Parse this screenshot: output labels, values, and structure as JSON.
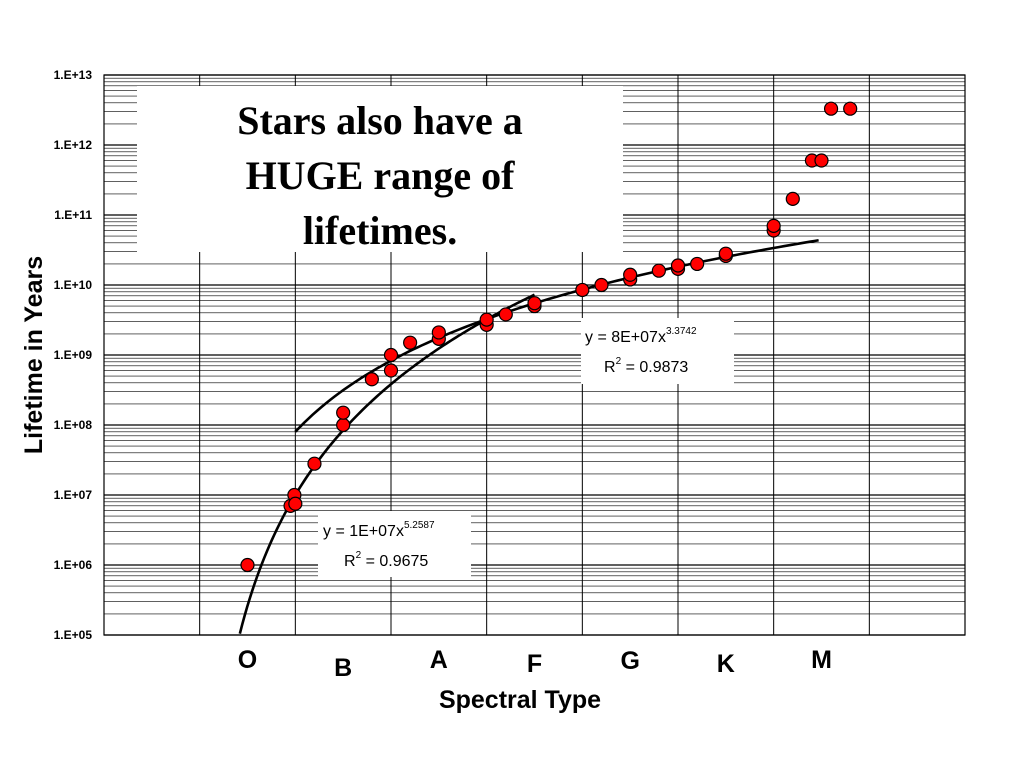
{
  "chart_data": {
    "type": "scatter",
    "title": "",
    "xlabel": "Spectral Type",
    "ylabel": "Lifetime in Years",
    "y_scale": "log",
    "ylim": [
      100000,
      10000000000000
    ],
    "y_ticks": [
      "1.E+05",
      "1.E+06",
      "1.E+07",
      "1.E+08",
      "1.E+09",
      "1.E+10",
      "1.E+11",
      "1.E+12",
      "1.E+13"
    ],
    "categories": [
      "O",
      "B",
      "A",
      "F",
      "G",
      "K",
      "M"
    ],
    "grid": true,
    "series": [
      {
        "color": "#ff0000",
        "points": [
          {
            "x": 0.5,
            "y": 1000000
          },
          {
            "x": 0.95,
            "y": 7000000
          },
          {
            "x": 0.99,
            "y": 10000000
          },
          {
            "x": 1.0,
            "y": 7500000
          },
          {
            "x": 1.2,
            "y": 28000000
          },
          {
            "x": 1.5,
            "y": 100000000
          },
          {
            "x": 1.5,
            "y": 150000000
          },
          {
            "x": 1.8,
            "y": 450000000
          },
          {
            "x": 2.0,
            "y": 600000000
          },
          {
            "x": 2.0,
            "y": 1000000000
          },
          {
            "x": 2.2,
            "y": 1500000000
          },
          {
            "x": 2.5,
            "y": 1700000000
          },
          {
            "x": 2.5,
            "y": 2100000000
          },
          {
            "x": 3.0,
            "y": 2700000000
          },
          {
            "x": 3.0,
            "y": 3200000000
          },
          {
            "x": 3.2,
            "y": 3800000000
          },
          {
            "x": 3.5,
            "y": 5000000000
          },
          {
            "x": 3.5,
            "y": 5500000000
          },
          {
            "x": 4.0,
            "y": 8500000000
          },
          {
            "x": 4.2,
            "y": 10000000000
          },
          {
            "x": 4.5,
            "y": 12000000000
          },
          {
            "x": 4.5,
            "y": 14000000000
          },
          {
            "x": 4.8,
            "y": 16000000000
          },
          {
            "x": 5.0,
            "y": 17000000000
          },
          {
            "x": 5.0,
            "y": 19000000000
          },
          {
            "x": 5.2,
            "y": 20000000000
          },
          {
            "x": 5.5,
            "y": 26000000000
          },
          {
            "x": 5.5,
            "y": 28000000000
          },
          {
            "x": 6.0,
            "y": 60000000000
          },
          {
            "x": 6.0,
            "y": 70000000000
          },
          {
            "x": 6.2,
            "y": 170000000000
          },
          {
            "x": 6.4,
            "y": 600000000000
          },
          {
            "x": 6.5,
            "y": 600000000000
          },
          {
            "x": 6.6,
            "y": 3300000000000
          },
          {
            "x": 6.8,
            "y": 3300000000000
          }
        ]
      }
    ],
    "trendlines": [
      {
        "kind": "power",
        "a": 10000000,
        "b": 5.2587,
        "x_range": [
          0.42,
          3.5
        ],
        "equation": "y = 1E+07x",
        "exponent": "5.2587",
        "r2_prefix": "R",
        "r2_sup": "2",
        "r2_value": " = 0.9675"
      },
      {
        "kind": "power",
        "a": 80000000,
        "b": 3.3742,
        "x_range": [
          1.0,
          6.47
        ],
        "equation": "y = 8E+07x",
        "exponent": "3.3742",
        "r2_prefix": "R",
        "r2_sup": "2",
        "r2_value": " = 0.9873"
      }
    ]
  },
  "headline": {
    "line1": "Stars also have a",
    "line2": "HUGE range of",
    "line3": "lifetimes."
  }
}
